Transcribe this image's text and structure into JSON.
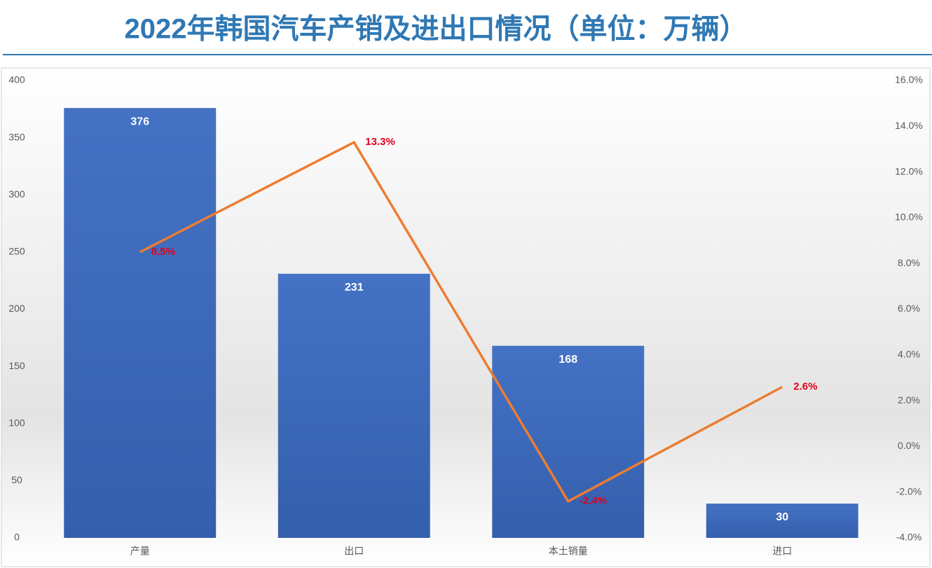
{
  "chart_data": {
    "type": "bar",
    "title": "2022年韩国汽车产销及进出口情况（单位：万辆）",
    "categories": [
      "产量",
      "出口",
      "本土销量",
      "进口"
    ],
    "series": [
      {
        "type": "bar",
        "color": "#4472c4",
        "values": [
          376,
          231,
          168,
          30
        ]
      },
      {
        "type": "line",
        "axis": "y2",
        "color": "#ed7d31",
        "values": [
          8.5,
          13.3,
          -2.4,
          2.6
        ],
        "value_labels": [
          "8.5%",
          "13.3%",
          "-2.4%",
          "2.6%"
        ]
      }
    ],
    "ylim": [
      0,
      400
    ],
    "yticks": [
      0,
      50,
      100,
      150,
      200,
      250,
      300,
      350,
      400
    ],
    "y2lim": [
      -4,
      16
    ],
    "y2ticks": [
      {
        "value": -4,
        "label": "-4.0%"
      },
      {
        "value": -2,
        "label": "-2.0%"
      },
      {
        "value": 0,
        "label": "0.0%"
      },
      {
        "value": 2,
        "label": "2.0%"
      },
      {
        "value": 4,
        "label": "4.0%"
      },
      {
        "value": 6,
        "label": "6.0%"
      },
      {
        "value": 8,
        "label": "8.0%"
      },
      {
        "value": 10,
        "label": "10.0%"
      },
      {
        "value": 12,
        "label": "12.0%"
      },
      {
        "value": 14,
        "label": "14.0%"
      },
      {
        "value": 16,
        "label": "16.0%"
      }
    ]
  }
}
